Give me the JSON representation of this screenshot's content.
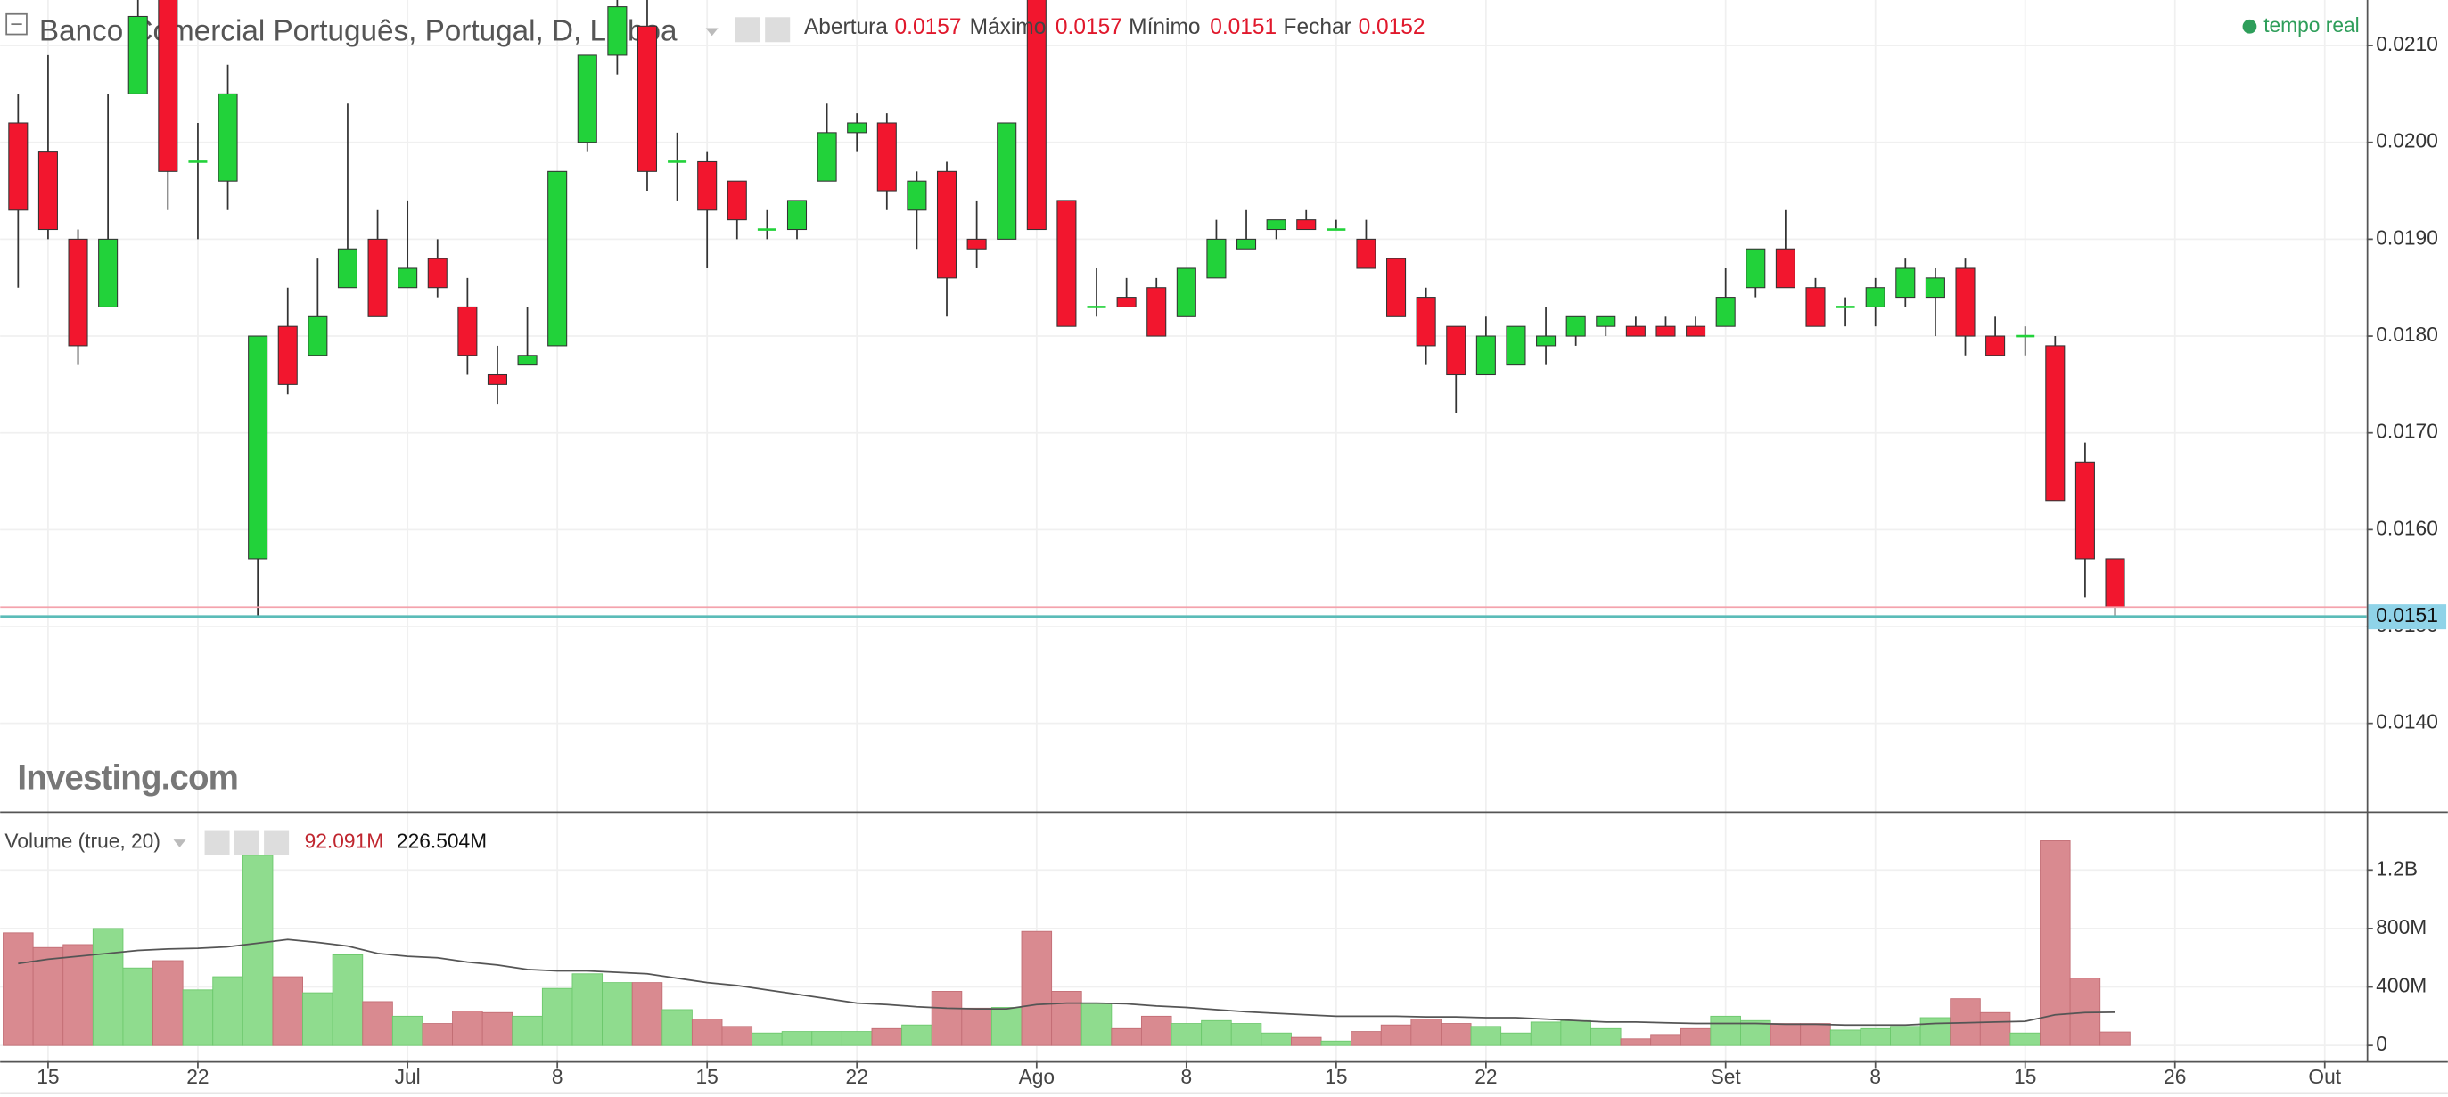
{
  "chart_data": [
    {
      "type": "candlestick",
      "title": "Banco Comercial Português, Portugal, D, Lisboa",
      "ohlc_legend": [
        {
          "name": "Abertura",
          "value": 0.0157
        },
        {
          "name": "Máximo",
          "value": 0.0157
        },
        {
          "name": "Mínimo",
          "value": 0.0151
        },
        {
          "name": "Fechar",
          "value": 0.0152
        }
      ],
      "status": "tempo real",
      "watermark": "Investing.com",
      "up_color": "#22d23a",
      "down_color": "#f2162e",
      "xlim": [
        -0.6,
        78.4
      ],
      "xticks": [
        {
          "value": 1,
          "label": "15"
        },
        {
          "value": 6,
          "label": "22"
        },
        {
          "value": 13,
          "label": "Jul"
        },
        {
          "value": 18,
          "label": "8"
        },
        {
          "value": 23,
          "label": "15"
        },
        {
          "value": 28,
          "label": "22"
        },
        {
          "value": 34,
          "label": "Ago"
        },
        {
          "value": 39,
          "label": "8"
        },
        {
          "value": 44,
          "label": "15"
        },
        {
          "value": 49,
          "label": "22"
        },
        {
          "value": 57,
          "label": "Set"
        },
        {
          "value": 62,
          "label": "8"
        },
        {
          "value": 67,
          "label": "15"
        },
        {
          "value": 72,
          "label": "26"
        },
        {
          "value": 77,
          "label": "Out"
        }
      ],
      "ylim": [
        0.01309,
        0.02147
      ],
      "yticks": [
        {
          "value": 0.014,
          "label": "0.0140"
        },
        {
          "value": 0.015,
          "label": "0.0150"
        },
        {
          "value": 0.016,
          "label": "0.0160"
        },
        {
          "value": 0.017,
          "label": "0.0170"
        },
        {
          "value": 0.018,
          "label": "0.0180"
        },
        {
          "value": 0.019,
          "label": "0.0190"
        },
        {
          "value": 0.02,
          "label": "0.0200"
        },
        {
          "value": 0.021,
          "label": "0.0210"
        }
      ],
      "last_price": {
        "value": 0.0151,
        "label": "0.0151"
      },
      "close_line": 0.0152,
      "open": [
        0.0202,
        0.0199,
        0.019,
        0.0183,
        0.0205,
        0.0215,
        0.0198,
        0.0196,
        0.0157,
        0.0181,
        0.0178,
        0.0185,
        0.019,
        0.0185,
        0.0188,
        0.0183,
        0.0176,
        0.0177,
        0.0179,
        0.02,
        0.0209,
        0.0212,
        0.0198,
        0.0198,
        0.0196,
        0.0191,
        0.0191,
        0.0196,
        0.0201,
        0.0202,
        0.0193,
        0.0197,
        0.019,
        0.019,
        0.0215,
        0.0194,
        0.0183,
        0.0184,
        0.0185,
        0.0182,
        0.0186,
        0.0189,
        0.0191,
        0.0192,
        0.0191,
        0.019,
        0.0188,
        0.0184,
        0.0181,
        0.0176,
        0.0177,
        0.0179,
        0.018,
        0.0181,
        0.0181,
        0.0181,
        0.0181,
        0.0181,
        0.0185,
        0.0189,
        0.0185,
        0.0183,
        0.0183,
        0.0184,
        0.0184,
        0.0187,
        0.018,
        0.018,
        0.0179,
        0.0167,
        0.0157
      ],
      "high": [
        0.0205,
        0.0209,
        0.0191,
        0.0205,
        0.0215,
        0.0215,
        0.0202,
        0.0208,
        0.018,
        0.0185,
        0.0188,
        0.0204,
        0.0193,
        0.0194,
        0.019,
        0.0186,
        0.0179,
        0.0183,
        0.0197,
        0.0209,
        0.0215,
        0.0215,
        0.0201,
        0.0199,
        0.0196,
        0.0193,
        0.0194,
        0.0204,
        0.0203,
        0.0203,
        0.0197,
        0.0198,
        0.0194,
        0.0202,
        0.0215,
        0.0194,
        0.0187,
        0.0186,
        0.0186,
        0.0187,
        0.0192,
        0.0193,
        0.0192,
        0.0193,
        0.0192,
        0.0192,
        0.0188,
        0.0185,
        0.0181,
        0.0182,
        0.0181,
        0.0183,
        0.0182,
        0.0182,
        0.0182,
        0.0182,
        0.0182,
        0.0187,
        0.0189,
        0.0193,
        0.0186,
        0.0184,
        0.0186,
        0.0188,
        0.0187,
        0.0188,
        0.0182,
        0.0181,
        0.018,
        0.0169,
        0.0157
      ],
      "low": [
        0.0185,
        0.019,
        0.0177,
        0.0183,
        0.0205,
        0.0193,
        0.019,
        0.0193,
        0.0151,
        0.0174,
        0.0178,
        0.0185,
        0.0182,
        0.0185,
        0.0184,
        0.0176,
        0.0173,
        0.0177,
        0.0179,
        0.0199,
        0.0207,
        0.0195,
        0.0194,
        0.0187,
        0.019,
        0.019,
        0.019,
        0.0196,
        0.0199,
        0.0193,
        0.0189,
        0.0182,
        0.0187,
        0.019,
        0.0191,
        0.0181,
        0.0182,
        0.0183,
        0.018,
        0.0182,
        0.0186,
        0.0189,
        0.019,
        0.0191,
        0.0191,
        0.0187,
        0.0182,
        0.0177,
        0.0172,
        0.0176,
        0.0177,
        0.0177,
        0.0179,
        0.018,
        0.018,
        0.018,
        0.018,
        0.0181,
        0.0184,
        0.0185,
        0.0181,
        0.0181,
        0.0181,
        0.0183,
        0.018,
        0.0178,
        0.0178,
        0.0178,
        0.0163,
        0.0153,
        0.0151
      ],
      "close": [
        0.0193,
        0.0191,
        0.0179,
        0.019,
        0.0213,
        0.0197,
        0.0198,
        0.0205,
        0.018,
        0.0175,
        0.0182,
        0.0189,
        0.0182,
        0.0187,
        0.0185,
        0.0178,
        0.0175,
        0.0178,
        0.0197,
        0.0209,
        0.0214,
        0.0197,
        0.0198,
        0.0193,
        0.0192,
        0.0191,
        0.0194,
        0.0201,
        0.0202,
        0.0195,
        0.0196,
        0.0186,
        0.0189,
        0.0202,
        0.0191,
        0.0181,
        0.0183,
        0.0183,
        0.018,
        0.0187,
        0.019,
        0.019,
        0.0192,
        0.0191,
        0.0191,
        0.0187,
        0.0182,
        0.0179,
        0.0176,
        0.018,
        0.0181,
        0.018,
        0.0182,
        0.0182,
        0.018,
        0.018,
        0.018,
        0.0184,
        0.0189,
        0.0185,
        0.0181,
        0.0183,
        0.0185,
        0.0187,
        0.0186,
        0.018,
        0.0178,
        0.018,
        0.0163,
        0.0157,
        0.0152
      ]
    },
    {
      "type": "bar",
      "title": "Volume (true, 20)",
      "legend_values": [
        {
          "value": 92.091,
          "label": "92.091M"
        },
        {
          "value": 226.504,
          "label": "226.504M"
        }
      ],
      "up_color": "#8fdc8e",
      "down_color": "#d98a90",
      "ma_color": "#555555",
      "ylim": [
        -107,
        1590
      ],
      "yticks": [
        0,
        {
          "value": 400,
          "label": "400M"
        },
        {
          "value": 800,
          "label": "800M"
        },
        {
          "value": 1200,
          "label": "1.2B"
        }
      ],
      "values": [
        770,
        670,
        690,
        800,
        530,
        580,
        380,
        470,
        1300,
        470,
        360,
        620,
        300,
        200,
        150,
        235,
        225,
        200,
        390,
        490,
        430,
        430,
        245,
        180,
        130,
        85,
        95,
        95,
        95,
        115,
        140,
        370,
        255,
        260,
        780,
        370,
        290,
        115,
        200,
        150,
        170,
        150,
        85,
        55,
        30,
        95,
        140,
        180,
        150,
        130,
        85,
        160,
        170,
        115,
        45,
        75,
        115,
        200,
        170,
        150,
        150,
        105,
        115,
        130,
        190,
        320,
        225,
        85,
        1400,
        460,
        92
      ],
      "ma": [
        560,
        590,
        610,
        630,
        650,
        660,
        665,
        675,
        700,
        725,
        705,
        680,
        630,
        610,
        600,
        570,
        550,
        520,
        510,
        510,
        500,
        490,
        460,
        430,
        410,
        380,
        350,
        320,
        290,
        280,
        265,
        255,
        250,
        250,
        280,
        290,
        290,
        285,
        270,
        260,
        245,
        230,
        220,
        210,
        200,
        200,
        200,
        195,
        195,
        190,
        190,
        180,
        170,
        160,
        160,
        155,
        150,
        150,
        150,
        145,
        145,
        140,
        140,
        140,
        150,
        155,
        160,
        165,
        210,
        225,
        227
      ]
    }
  ]
}
